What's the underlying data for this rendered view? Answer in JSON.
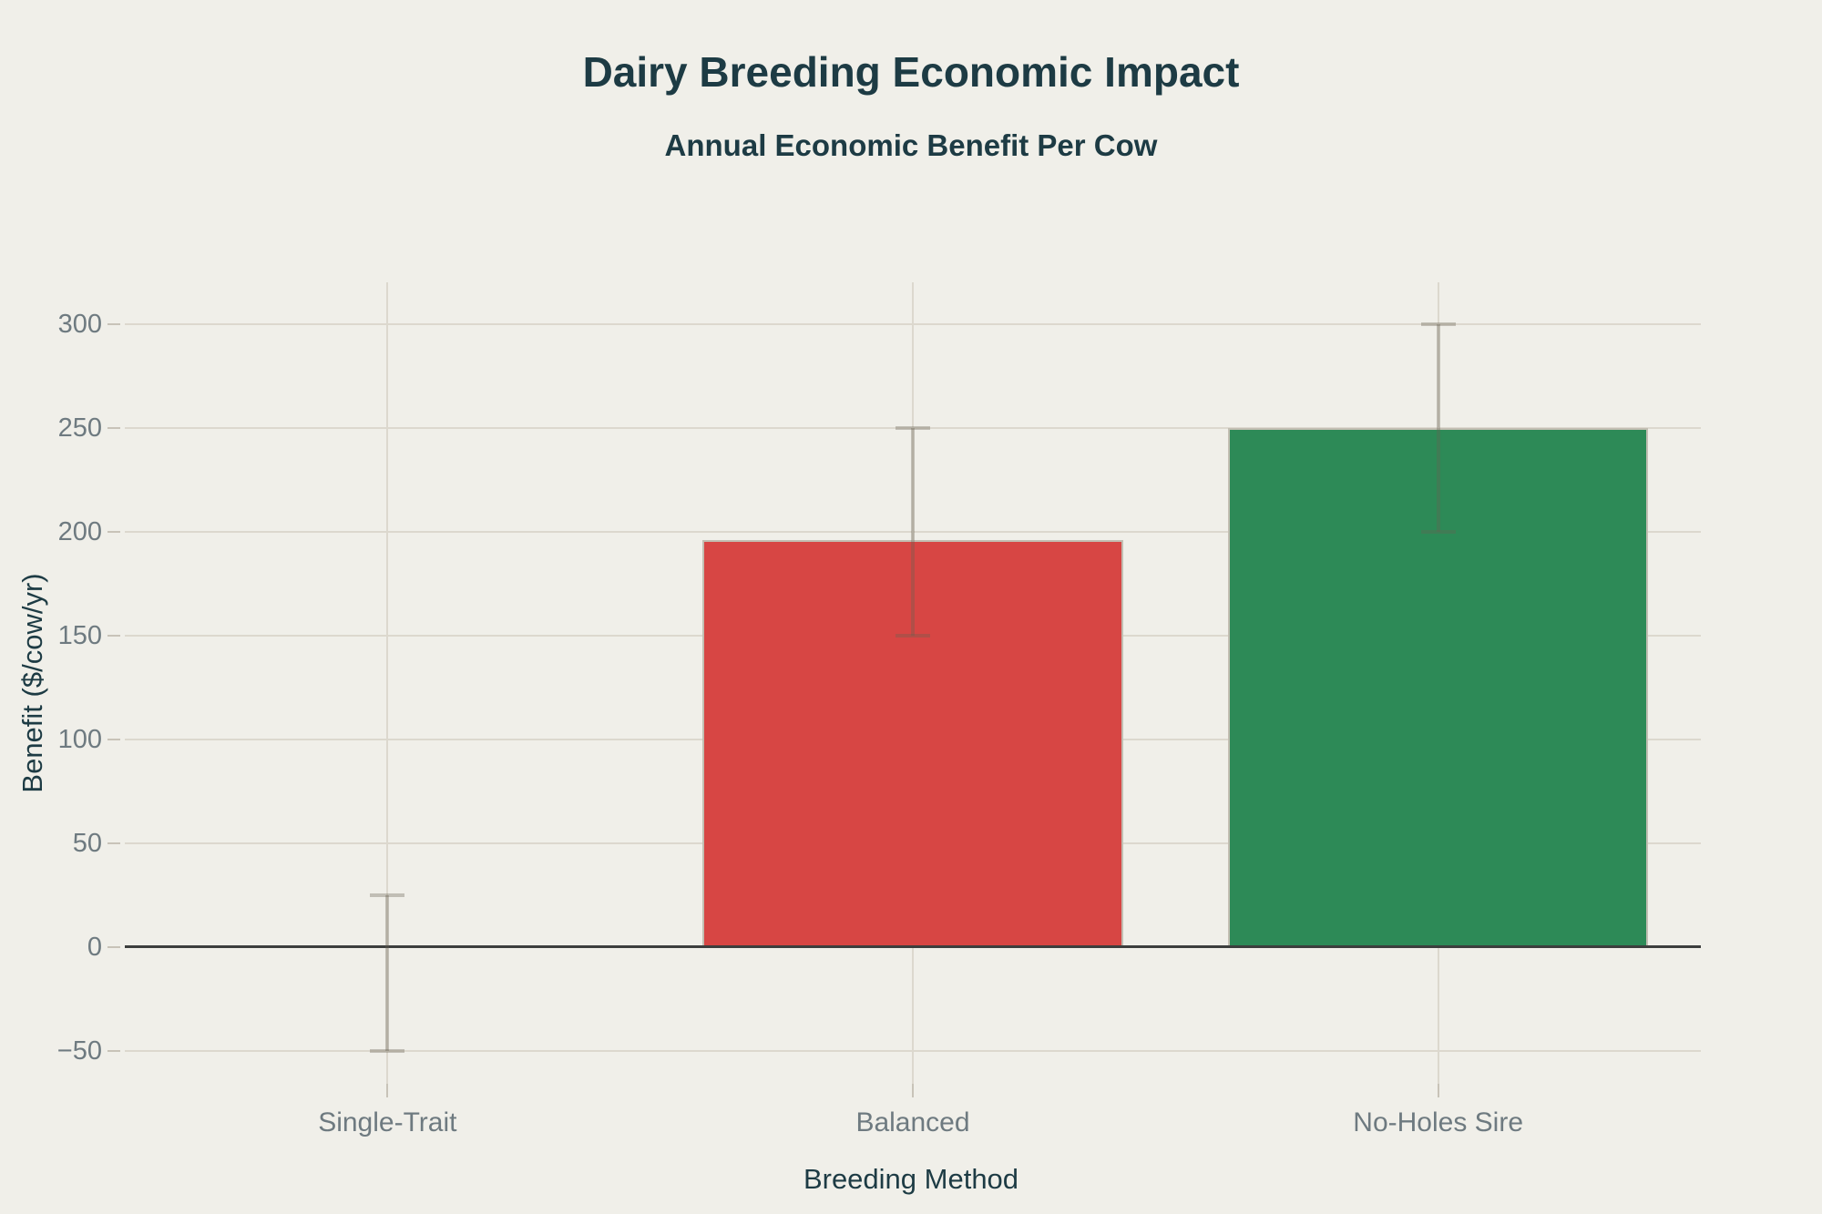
{
  "chart_data": {
    "type": "bar",
    "title": "Dairy Breeding Economic Impact",
    "subtitle": "Annual Economic Benefit Per Cow",
    "xlabel": "Breeding Method",
    "ylabel": "Benefit ($/cow/yr)",
    "categories": [
      "Single-Trait",
      "Balanced",
      "No-Holes Sire"
    ],
    "values": [
      0,
      196,
      250
    ],
    "error_low": [
      -50,
      150,
      200
    ],
    "error_high": [
      25,
      250,
      300
    ],
    "bar_colors": [
      null,
      "#d74644",
      "#2d8a57"
    ],
    "ylim": [
      -66,
      320
    ],
    "yticks": [
      {
        "v": -50,
        "label": "−50"
      },
      {
        "v": 0,
        "label": "0"
      },
      {
        "v": 50,
        "label": "50"
      },
      {
        "v": 100,
        "label": "100"
      },
      {
        "v": 150,
        "label": "150"
      },
      {
        "v": 200,
        "label": "200"
      },
      {
        "v": 250,
        "label": "250"
      },
      {
        "v": 300,
        "label": "300"
      }
    ],
    "bar_width_frac": 0.8,
    "grid": true,
    "legend": false
  },
  "style": {
    "background": "#f0efe9",
    "heading_color": "#1d3b44",
    "tick_label_color": "#6e7a80",
    "grid_color": "#dcd8ce",
    "zero_axis_color": "#3c3e3d",
    "error_bar_color": "rgba(104,96,82,0.34)",
    "bar_red": "#d74644",
    "bar_green": "#2d8a57"
  }
}
